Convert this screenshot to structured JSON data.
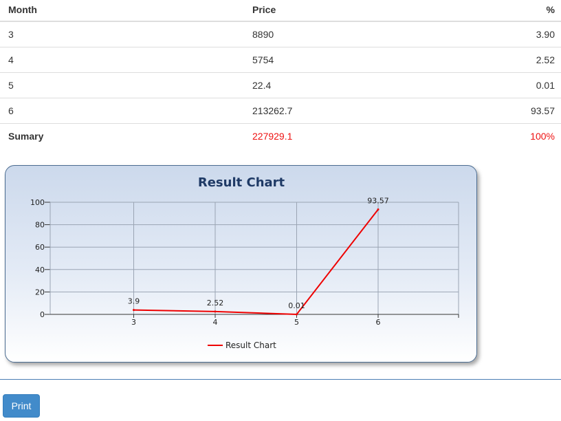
{
  "table": {
    "headers": {
      "month": "Month",
      "price": "Price",
      "percent": "%"
    },
    "rows": [
      {
        "month": "3",
        "price": "8890",
        "percent": "3.90"
      },
      {
        "month": "4",
        "price": "5754",
        "percent": "2.52"
      },
      {
        "month": "5",
        "price": "22.4",
        "percent": "0.01"
      },
      {
        "month": "6",
        "price": "213262.7",
        "percent": "93.57"
      }
    ],
    "summary": {
      "label": "Sumary",
      "price": "227929.1",
      "percent": "100%"
    }
  },
  "colors": {
    "summary_value": "#ee1111",
    "series_line": "#ee0000",
    "button": "#428bca"
  },
  "chart_data": {
    "type": "line",
    "title": "Result Chart",
    "categories": [
      "3",
      "4",
      "5",
      "6"
    ],
    "series": [
      {
        "name": "Result Chart",
        "values": [
          3.9,
          2.52,
          0.01,
          93.57
        ],
        "labels": [
          "3.9",
          "2.52",
          "0.01",
          "93.57"
        ]
      }
    ],
    "yticks": [
      0,
      20,
      40,
      60,
      80,
      100
    ],
    "ylim": [
      0,
      100
    ],
    "grid": true,
    "legend": "bottom-center"
  },
  "actions": {
    "print_label": "Print"
  }
}
